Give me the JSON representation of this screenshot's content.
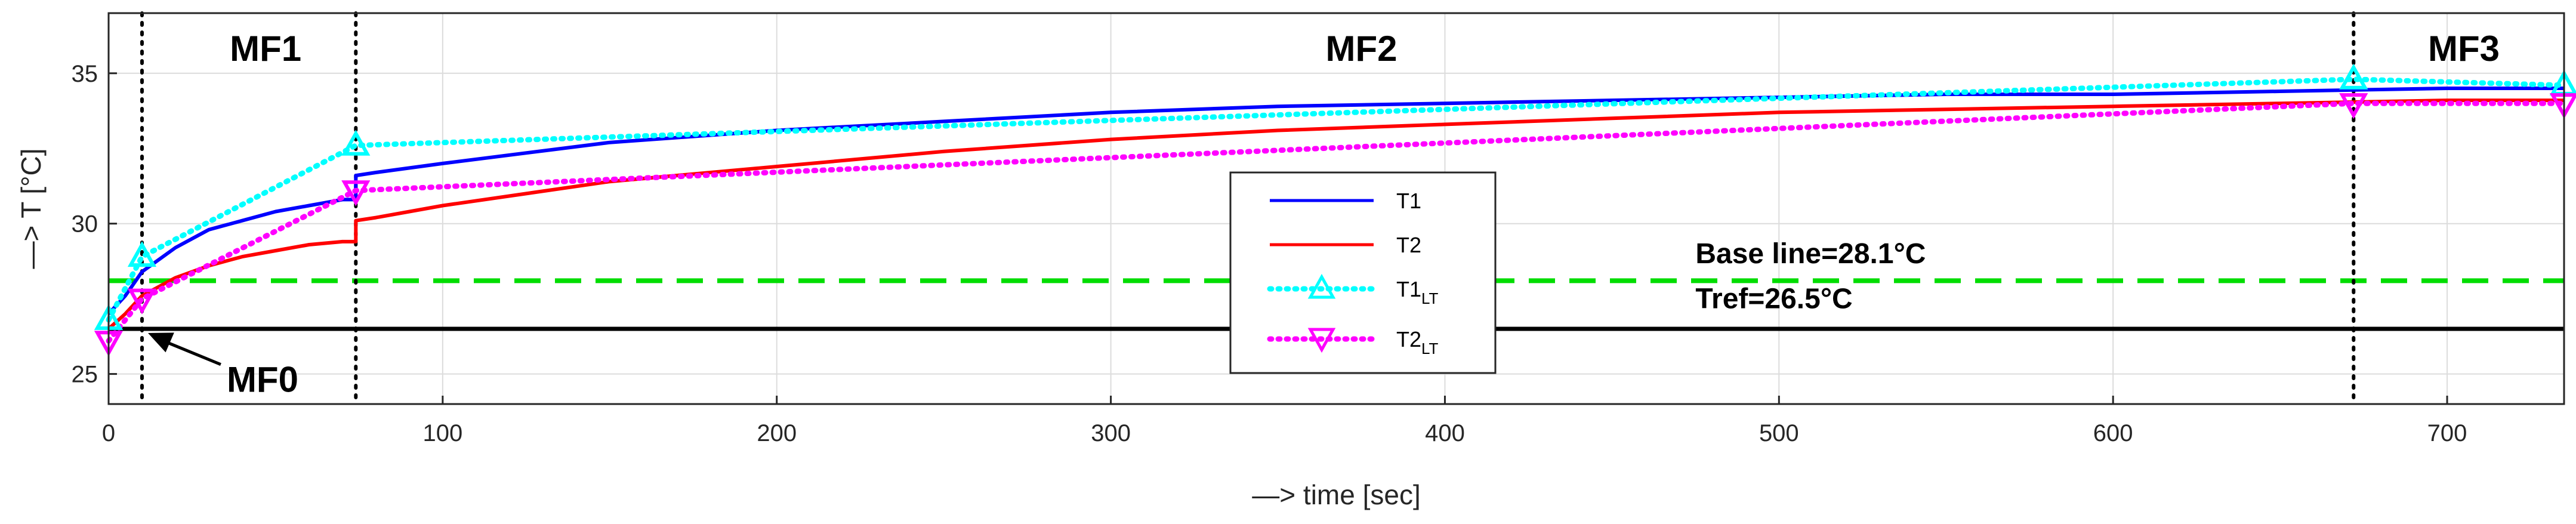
{
  "chart_data": {
    "type": "line",
    "xlabel": "—> time [sec]",
    "ylabel": "—> T [°C]",
    "xlim": [
      0,
      735
    ],
    "ylim": [
      24,
      37
    ],
    "xticks": [
      0,
      100,
      200,
      300,
      400,
      500,
      600,
      700
    ],
    "yticks": [
      25,
      30,
      35
    ],
    "grid": true,
    "phases": [
      {
        "label": "MF1",
        "x_center": 47
      },
      {
        "label": "MF2",
        "x_center": 375
      },
      {
        "label": "MF3",
        "x_center": 705
      }
    ],
    "phase_boundaries": [
      10,
      74,
      672
    ],
    "mf0": {
      "label": "MF0",
      "point": [
        10,
        26.6
      ],
      "text_pos": [
        30,
        24.8
      ]
    },
    "hlines": [
      {
        "name": "Base line",
        "value": 28.1,
        "label": "Base line=28.1°C",
        "color": "#00dd00",
        "style": "dashed",
        "label_x": 475,
        "label_y": 29.0
      },
      {
        "name": "Tref",
        "value": 26.5,
        "label": "Tref=26.5°C",
        "color": "#000000",
        "style": "solid",
        "label_x": 475,
        "label_y": 27.5
      }
    ],
    "legend": {
      "position": "center",
      "entries": [
        {
          "label": "T1",
          "sub": ""
        },
        {
          "label": "T2",
          "sub": ""
        },
        {
          "label": "T1",
          "sub": "LT"
        },
        {
          "label": "T2",
          "sub": "LT"
        }
      ]
    },
    "series": [
      {
        "name": "T1",
        "color": "#0000ff",
        "style": "solid",
        "marker": "none",
        "x": [
          0,
          5,
          10,
          20,
          30,
          40,
          50,
          60,
          70,
          74,
          74,
          80,
          100,
          150,
          200,
          250,
          300,
          350,
          400,
          450,
          500,
          550,
          600,
          650,
          700,
          735
        ],
        "y": [
          27.0,
          27.6,
          28.4,
          29.2,
          29.8,
          30.1,
          30.4,
          30.6,
          30.8,
          30.8,
          31.6,
          31.7,
          32.0,
          32.7,
          33.1,
          33.4,
          33.7,
          33.9,
          34.0,
          34.1,
          34.2,
          34.3,
          34.3,
          34.4,
          34.5,
          34.5
        ]
      },
      {
        "name": "T2",
        "color": "#ff0000",
        "style": "solid",
        "marker": "none",
        "x": [
          0,
          5,
          10,
          20,
          30,
          40,
          50,
          60,
          70,
          74,
          74,
          80,
          100,
          150,
          200,
          250,
          300,
          350,
          400,
          450,
          500,
          550,
          600,
          650,
          700,
          735
        ],
        "y": [
          26.5,
          27.0,
          27.6,
          28.2,
          28.6,
          28.9,
          29.1,
          29.3,
          29.4,
          29.4,
          30.1,
          30.2,
          30.6,
          31.4,
          31.9,
          32.4,
          32.8,
          33.1,
          33.3,
          33.5,
          33.7,
          33.8,
          33.9,
          34.0,
          34.1,
          34.1
        ]
      },
      {
        "name": "T1_LT",
        "color": "#00ffff",
        "style": "dotted",
        "marker": "triangle-up",
        "x": [
          0,
          10,
          74,
          672,
          735
        ],
        "y": [
          26.8,
          28.9,
          32.6,
          34.8,
          34.6
        ]
      },
      {
        "name": "T2_LT",
        "color": "#ff00ff",
        "style": "dotted",
        "marker": "triangle-down",
        "x": [
          0,
          10,
          74,
          672,
          735
        ],
        "y": [
          26.1,
          27.5,
          31.1,
          34.0,
          34.0
        ]
      }
    ]
  }
}
